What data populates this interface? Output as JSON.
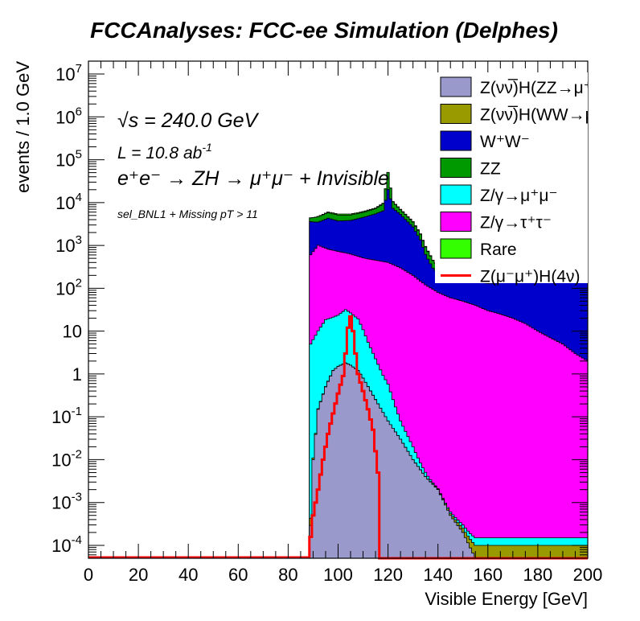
{
  "chart_data": {
    "type": "histogram-stacked-log",
    "title": "FCCAnalyses: FCC-ee Simulation (Delphes)",
    "xlabel": "Visible Energy [GeV]",
    "ylabel": "events / 1.0 GeV",
    "xlim": [
      0,
      200
    ],
    "ylim": [
      5e-05,
      20000000
    ],
    "yscale": "log",
    "x_ticks": [
      "0",
      "20",
      "40",
      "60",
      "80",
      "100",
      "120",
      "140",
      "160",
      "180",
      "200"
    ],
    "y_ticks": [
      {
        "base": "10",
        "exp": "-4",
        "value": 0.0001
      },
      {
        "base": "10",
        "exp": "-3",
        "value": 0.001
      },
      {
        "base": "10",
        "exp": "-2",
        "value": 0.01
      },
      {
        "base": "10",
        "exp": "-1",
        "value": 0.1
      },
      {
        "base": "1",
        "exp": "",
        "value": 1
      },
      {
        "base": "10",
        "exp": "",
        "value": 10
      },
      {
        "base": "10",
        "exp": "2",
        "value": 100
      },
      {
        "base": "10",
        "exp": "3",
        "value": 1000
      },
      {
        "base": "10",
        "exp": "4",
        "value": 10000
      },
      {
        "base": "10",
        "exp": "5",
        "value": 100000
      },
      {
        "base": "10",
        "exp": "6",
        "value": 1000000
      },
      {
        "base": "10",
        "exp": "7",
        "value": 10000000
      }
    ],
    "annotations": {
      "sqrt_s": "√s = 240.0 GeV",
      "lumi_main": "L = 10.8 ab",
      "lumi_exp": "-1",
      "process": "e⁺e⁻ → ZH → μ⁺μ⁻ + Invisible",
      "selection": "sel_BNL1 + Missing pT > 11"
    },
    "legend_position": "top-right",
    "legend": [
      {
        "label": "Z(νν̅)H(ZZ→μ⁺μ⁻ν⁺ν⁻)",
        "color": "#9999cc",
        "kind": "fill"
      },
      {
        "label": "Z(νν̅)H(WW→μ⁺νμ⁻ν)",
        "color": "#999900",
        "kind": "fill"
      },
      {
        "label": "W⁺W⁻",
        "color": "#0000cc",
        "kind": "fill"
      },
      {
        "label": "ZZ",
        "color": "#009900",
        "kind": "fill"
      },
      {
        "label": "Z/γ→μ⁺μ⁻",
        "color": "#00ffff",
        "kind": "fill"
      },
      {
        "label": "Z/γ→τ⁺τ⁻",
        "color": "#ff00ff",
        "kind": "fill"
      },
      {
        "label": "Rare",
        "color": "#33ff00",
        "kind": "fill"
      },
      {
        "label": "Z(μ⁻μ⁺)H(4ν)",
        "color": "#ff0000",
        "kind": "line"
      }
    ],
    "stack_order": [
      "ZvvZZ",
      "ZvvWW",
      "Zmumu_bg",
      "Ztautau",
      "WW",
      "ZZ",
      "Rare"
    ],
    "series": [
      {
        "name": "Z(νν̅)H(ZZ→μ⁺μ⁻ν⁺ν⁻)",
        "id": "ZvvZZ",
        "points": [
          [
            88.5,
            5e-05
          ],
          [
            90,
            0.01
          ],
          [
            92,
            0.15
          ],
          [
            95,
            0.5
          ],
          [
            98,
            1.2
          ],
          [
            100,
            1.5
          ],
          [
            103,
            1.8
          ],
          [
            105,
            1.6
          ],
          [
            108,
            1.2
          ],
          [
            110,
            0.8
          ],
          [
            113,
            0.4
          ],
          [
            116,
            0.2
          ],
          [
            120,
            0.08
          ],
          [
            125,
            0.03
          ],
          [
            130,
            0.01
          ],
          [
            135,
            0.004
          ],
          [
            140,
            0.002
          ],
          [
            145,
            0.0005
          ],
          [
            150,
            0.0002
          ],
          [
            155,
            5e-05
          ],
          [
            200,
            5e-05
          ]
        ]
      },
      {
        "name": "Z(νν̅)H(WW→μ⁺νμ⁻ν)",
        "id": "ZvvWW",
        "points": [
          [
            88.5,
            5e-05
          ],
          [
            90,
            0.001
          ],
          [
            92,
            0.005
          ],
          [
            95,
            0.01
          ],
          [
            98,
            0.012
          ],
          [
            100,
            0.013
          ],
          [
            104,
            0.012
          ],
          [
            108,
            0.008
          ],
          [
            112,
            0.004
          ],
          [
            116,
            0.002
          ],
          [
            118,
            5e-05
          ],
          [
            200,
            5e-05
          ]
        ]
      },
      {
        "name": "Z/γ→μ⁺μ⁻",
        "id": "Zmumu_bg",
        "points": [
          [
            88.5,
            5e-05
          ],
          [
            89,
            5
          ],
          [
            92,
            10
          ],
          [
            95,
            18
          ],
          [
            98,
            20
          ],
          [
            100,
            22
          ],
          [
            103,
            30
          ],
          [
            105,
            25
          ],
          [
            108,
            18
          ],
          [
            110,
            10
          ],
          [
            112,
            5
          ],
          [
            115,
            2
          ],
          [
            118,
            0.8
          ],
          [
            120,
            0.5
          ],
          [
            125,
            0.05
          ],
          [
            130,
            0.01
          ],
          [
            135,
            0.001
          ],
          [
            140,
            5e-05
          ],
          [
            200,
            5e-05
          ]
        ]
      },
      {
        "name": "Z/γ→τ⁺τ⁻",
        "id": "Ztautau",
        "points": [
          [
            88.5,
            5e-05
          ],
          [
            89,
            600
          ],
          [
            92,
            1000
          ],
          [
            96,
            800
          ],
          [
            100,
            700
          ],
          [
            105,
            600
          ],
          [
            110,
            500
          ],
          [
            115,
            450
          ],
          [
            120,
            400
          ],
          [
            125,
            300
          ],
          [
            130,
            200
          ],
          [
            135,
            120
          ],
          [
            140,
            80
          ],
          [
            145,
            60
          ],
          [
            150,
            50
          ],
          [
            155,
            40
          ],
          [
            160,
            30
          ],
          [
            165,
            25
          ],
          [
            170,
            20
          ],
          [
            175,
            15
          ],
          [
            180,
            10
          ],
          [
            185,
            7
          ],
          [
            190,
            5
          ],
          [
            195,
            3
          ],
          [
            200,
            2
          ]
        ]
      },
      {
        "name": "W⁺W⁻",
        "id": "WW",
        "points": [
          [
            88.5,
            5e-05
          ],
          [
            89,
            3000
          ],
          [
            92,
            2500
          ],
          [
            96,
            3500
          ],
          [
            100,
            3000
          ],
          [
            105,
            3200
          ],
          [
            110,
            4000
          ],
          [
            115,
            5000
          ],
          [
            118,
            6000
          ],
          [
            120,
            20000
          ],
          [
            122,
            7000
          ],
          [
            125,
            5000
          ],
          [
            130,
            2500
          ],
          [
            133,
            1200
          ],
          [
            135,
            500
          ],
          [
            138,
            200
          ],
          [
            140,
            150
          ],
          [
            145,
            120
          ],
          [
            150,
            100
          ],
          [
            155,
            100
          ],
          [
            160,
            100
          ],
          [
            165,
            110
          ],
          [
            170,
            120
          ],
          [
            175,
            140
          ],
          [
            180,
            160
          ],
          [
            185,
            180
          ],
          [
            190,
            200
          ],
          [
            195,
            220
          ],
          [
            200,
            230
          ]
        ]
      },
      {
        "name": "ZZ",
        "id": "ZZ",
        "points": [
          [
            88.5,
            5e-05
          ],
          [
            89,
            800
          ],
          [
            92,
            1200
          ],
          [
            96,
            1500
          ],
          [
            100,
            1400
          ],
          [
            105,
            1300
          ],
          [
            110,
            1400
          ],
          [
            115,
            1800
          ],
          [
            118,
            3000
          ],
          [
            120,
            30000
          ],
          [
            122,
            3000
          ],
          [
            125,
            1500
          ],
          [
            130,
            800
          ],
          [
            135,
            300
          ],
          [
            138,
            150
          ],
          [
            140,
            100
          ],
          [
            145,
            80
          ],
          [
            150,
            70
          ],
          [
            155,
            60
          ],
          [
            160,
            50
          ],
          [
            165,
            45
          ],
          [
            170,
            40
          ],
          [
            175,
            35
          ],
          [
            180,
            30
          ],
          [
            185,
            28
          ],
          [
            190,
            25
          ],
          [
            195,
            22
          ],
          [
            200,
            20
          ]
        ]
      },
      {
        "name": "Rare",
        "id": "Rare",
        "points": [
          [
            88.5,
            5e-05
          ],
          [
            89,
            2
          ],
          [
            92,
            50
          ],
          [
            95,
            200
          ],
          [
            98,
            280
          ],
          [
            100,
            300
          ],
          [
            105,
            290
          ],
          [
            110,
            270
          ],
          [
            115,
            250
          ],
          [
            120,
            220
          ],
          [
            125,
            180
          ],
          [
            130,
            120
          ],
          [
            133,
            80
          ],
          [
            135,
            30
          ],
          [
            138,
            10
          ],
          [
            140,
            6
          ],
          [
            145,
            3
          ],
          [
            150,
            2
          ],
          [
            155,
            1
          ],
          [
            160,
            0.5
          ],
          [
            165,
            0.3
          ],
          [
            170,
            0.2
          ],
          [
            175,
            0.1
          ],
          [
            180,
            0.08
          ],
          [
            185,
            0.05
          ],
          [
            190,
            0.03
          ],
          [
            195,
            0.02
          ],
          [
            200,
            0.01
          ]
        ]
      },
      {
        "name": "Z(μ⁻μ⁺)H(4ν)",
        "id": "signal",
        "points": [
          [
            88.5,
            5e-05
          ],
          [
            88.6,
            0.0001
          ],
          [
            90,
            0.0005
          ],
          [
            92,
            0.002
          ],
          [
            94,
            0.01
          ],
          [
            96,
            0.04
          ],
          [
            98,
            0.12
          ],
          [
            100,
            0.35
          ],
          [
            102,
            0.9
          ],
          [
            103,
            3
          ],
          [
            104,
            12
          ],
          [
            105,
            22
          ],
          [
            106,
            10
          ],
          [
            107,
            3
          ],
          [
            108,
            1
          ],
          [
            110,
            0.4
          ],
          [
            112,
            0.15
          ],
          [
            114,
            0.05
          ],
          [
            116,
            0.005
          ],
          [
            117,
            5e-05
          ],
          [
            200,
            5e-05
          ]
        ]
      }
    ]
  }
}
